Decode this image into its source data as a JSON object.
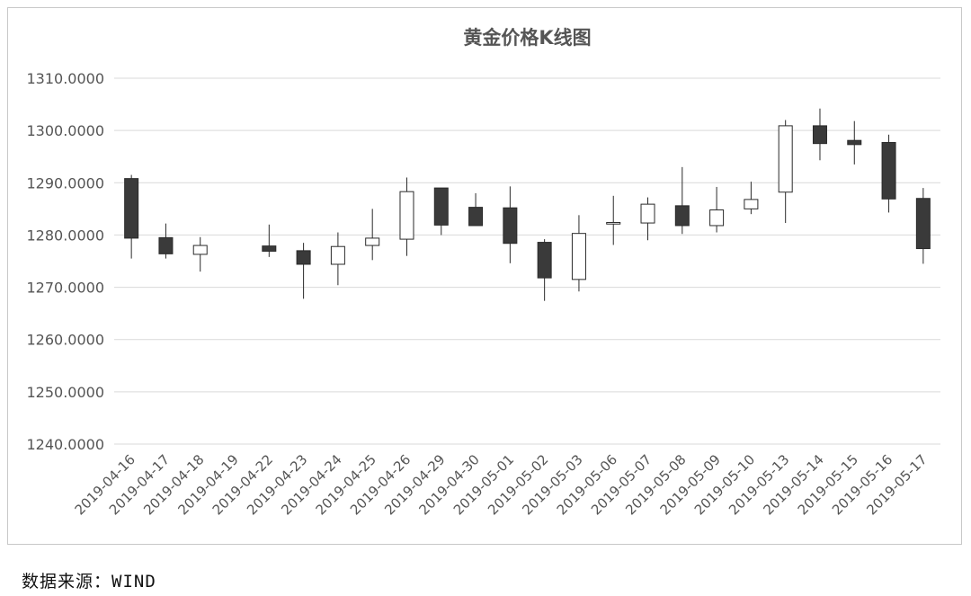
{
  "source_note": "数据来源：WIND",
  "chart_data": {
    "type": "candlestick",
    "title": "黄金价格K线图",
    "xlabel": "",
    "ylabel": "",
    "ylim": [
      1240,
      1310
    ],
    "yticks": [
      "1240.0000",
      "1250.0000",
      "1260.0000",
      "1270.0000",
      "1280.0000",
      "1290.0000",
      "1300.0000",
      "1310.0000"
    ],
    "grid": true,
    "legend": "none",
    "colors": {
      "up_fill": "#ffffff",
      "down_fill": "#3a3a3a",
      "stroke": "#2a2a2a",
      "grid": "#d9d9d9"
    },
    "categories": [
      "2019-04-16",
      "2019-04-17",
      "2019-04-18",
      "2019-04-19",
      "2019-04-22",
      "2019-04-23",
      "2019-04-24",
      "2019-04-25",
      "2019-04-26",
      "2019-04-29",
      "2019-04-30",
      "2019-05-01",
      "2019-05-02",
      "2019-05-03",
      "2019-05-06",
      "2019-05-07",
      "2019-05-08",
      "2019-05-09",
      "2019-05-10",
      "2019-05-13",
      "2019-05-14",
      "2019-05-15",
      "2019-05-16",
      "2019-05-17"
    ],
    "series": [
      {
        "open": [
          1290.8,
          1279.5,
          1276.3,
          null,
          1277.9,
          1277.0,
          1274.4,
          1278.0,
          1279.2,
          1289.0,
          1285.3,
          1285.2,
          1278.6,
          1271.5,
          1282.1,
          1282.3,
          1285.6,
          1281.8,
          1285.0,
          1288.2,
          1300.9,
          1298.1,
          1297.7,
          1287.0
        ],
        "high": [
          1291.5,
          1282.2,
          1279.6,
          null,
          1282.0,
          1278.5,
          1280.5,
          1285.0,
          1291.0,
          1289.0,
          1288.0,
          1289.3,
          1279.2,
          1283.8,
          1287.5,
          1287.2,
          1293.0,
          1289.2,
          1290.2,
          1302.0,
          1304.2,
          1301.8,
          1299.2,
          1289.0
        ],
        "low": [
          1275.5,
          1275.5,
          1273.0,
          null,
          1275.8,
          1267.8,
          1270.4,
          1275.2,
          1276.0,
          1280.0,
          1282.0,
          1274.6,
          1267.4,
          1269.2,
          1278.1,
          1279.0,
          1280.2,
          1280.5,
          1284.0,
          1282.3,
          1294.3,
          1293.5,
          1284.3,
          1274.5
        ],
        "close": [
          1279.4,
          1276.4,
          1278.0,
          null,
          1276.9,
          1274.4,
          1277.8,
          1279.4,
          1288.3,
          1281.9,
          1281.8,
          1278.4,
          1271.8,
          1280.3,
          1282.4,
          1285.9,
          1281.8,
          1284.8,
          1286.8,
          1300.9,
          1297.5,
          1297.3,
          1286.9,
          1277.4
        ]
      }
    ]
  }
}
